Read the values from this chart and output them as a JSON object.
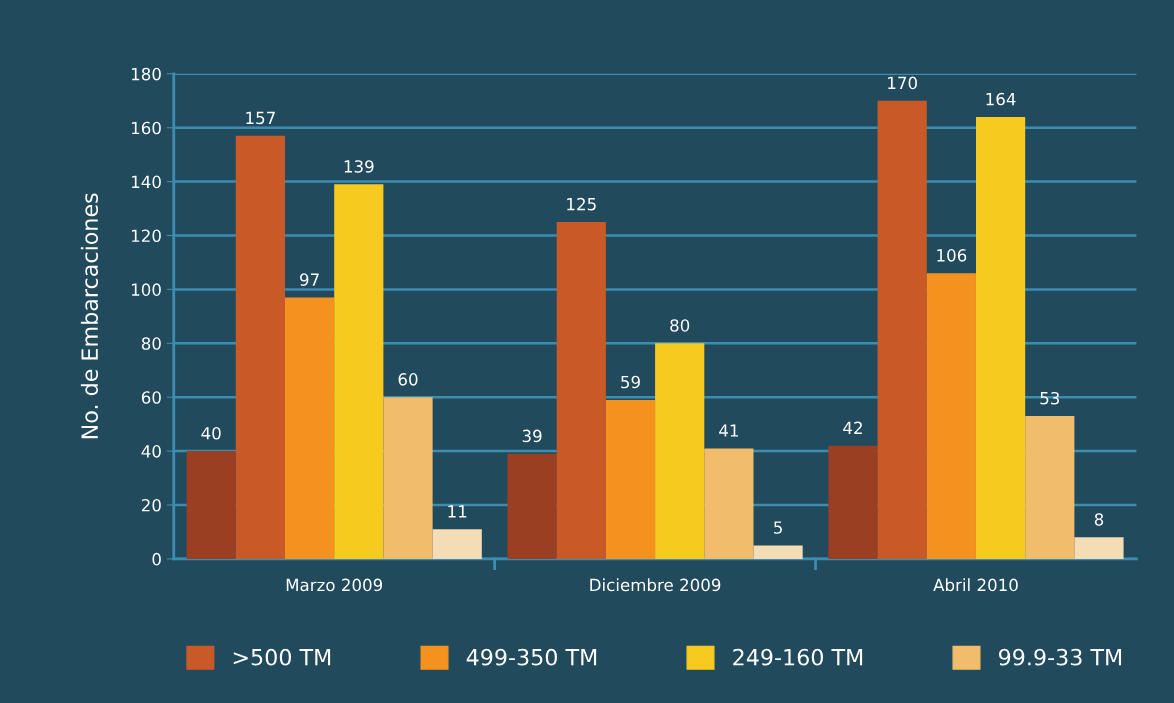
{
  "chart_data": {
    "type": "bar",
    "ylabel": "No. de Embarcaciones",
    "categories": [
      "Marzo 2009",
      "Diciembre 2009",
      "Abril 2010"
    ],
    "series": [
      {
        "color": "#9a3f22",
        "values": [
          40,
          39,
          42
        ]
      },
      {
        "name": ">500 TM",
        "color": "#c95a28",
        "values": [
          157,
          125,
          170
        ]
      },
      {
        "name": "499-350 TM",
        "color": "#f3921f",
        "values": [
          97,
          59,
          106
        ]
      },
      {
        "name": "249-160 TM",
        "color": "#f6ca1f",
        "values": [
          139,
          80,
          164
        ]
      },
      {
        "name": "99.9-33 TM",
        "color": "#f1bd6a",
        "values": [
          60,
          41,
          53
        ]
      },
      {
        "color": "#f4dcb4",
        "values": [
          11,
          5,
          8
        ]
      }
    ],
    "ylim": [
      0,
      180
    ],
    "yticks": [
      0,
      20,
      40,
      60,
      80,
      100,
      120,
      140,
      160,
      180
    ],
    "grid": "y",
    "legend": "bottom",
    "data_labels": true
  }
}
